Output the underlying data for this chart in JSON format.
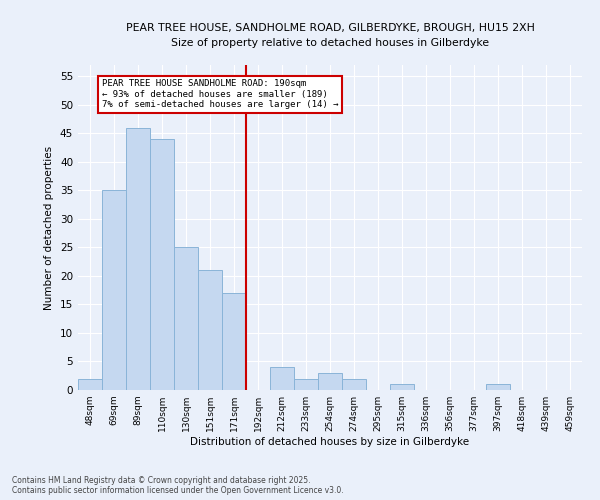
{
  "title1": "PEAR TREE HOUSE, SANDHOLME ROAD, GILBERDYKE, BROUGH, HU15 2XH",
  "title2": "Size of property relative to detached houses in Gilberdyke",
  "xlabel": "Distribution of detached houses by size in Gilberdyke",
  "ylabel": "Number of detached properties",
  "categories": [
    "48sqm",
    "69sqm",
    "89sqm",
    "110sqm",
    "130sqm",
    "151sqm",
    "171sqm",
    "192sqm",
    "212sqm",
    "233sqm",
    "254sqm",
    "274sqm",
    "295sqm",
    "315sqm",
    "336sqm",
    "356sqm",
    "377sqm",
    "397sqm",
    "418sqm",
    "439sqm",
    "459sqm"
  ],
  "values": [
    2,
    35,
    46,
    44,
    25,
    21,
    17,
    0,
    4,
    2,
    3,
    2,
    0,
    1,
    0,
    0,
    0,
    1,
    0,
    0,
    0
  ],
  "bar_color": "#c5d8f0",
  "bar_edge_color": "#8ab4d8",
  "vline_x_index": 7,
  "vline_color": "#cc0000",
  "annotation_title": "PEAR TREE HOUSE SANDHOLME ROAD: 190sqm",
  "annotation_line1": "← 93% of detached houses are smaller (189)",
  "annotation_line2": "7% of semi-detached houses are larger (14) →",
  "annotation_box_color": "#cc0000",
  "ylim": [
    0,
    57
  ],
  "yticks": [
    0,
    5,
    10,
    15,
    20,
    25,
    30,
    35,
    40,
    45,
    50,
    55
  ],
  "footer1": "Contains HM Land Registry data © Crown copyright and database right 2025.",
  "footer2": "Contains public sector information licensed under the Open Government Licence v3.0.",
  "bg_color": "#eaf0fa",
  "plot_bg_color": "#eaf0fa",
  "figsize": [
    6.0,
    5.0
  ],
  "dpi": 100
}
